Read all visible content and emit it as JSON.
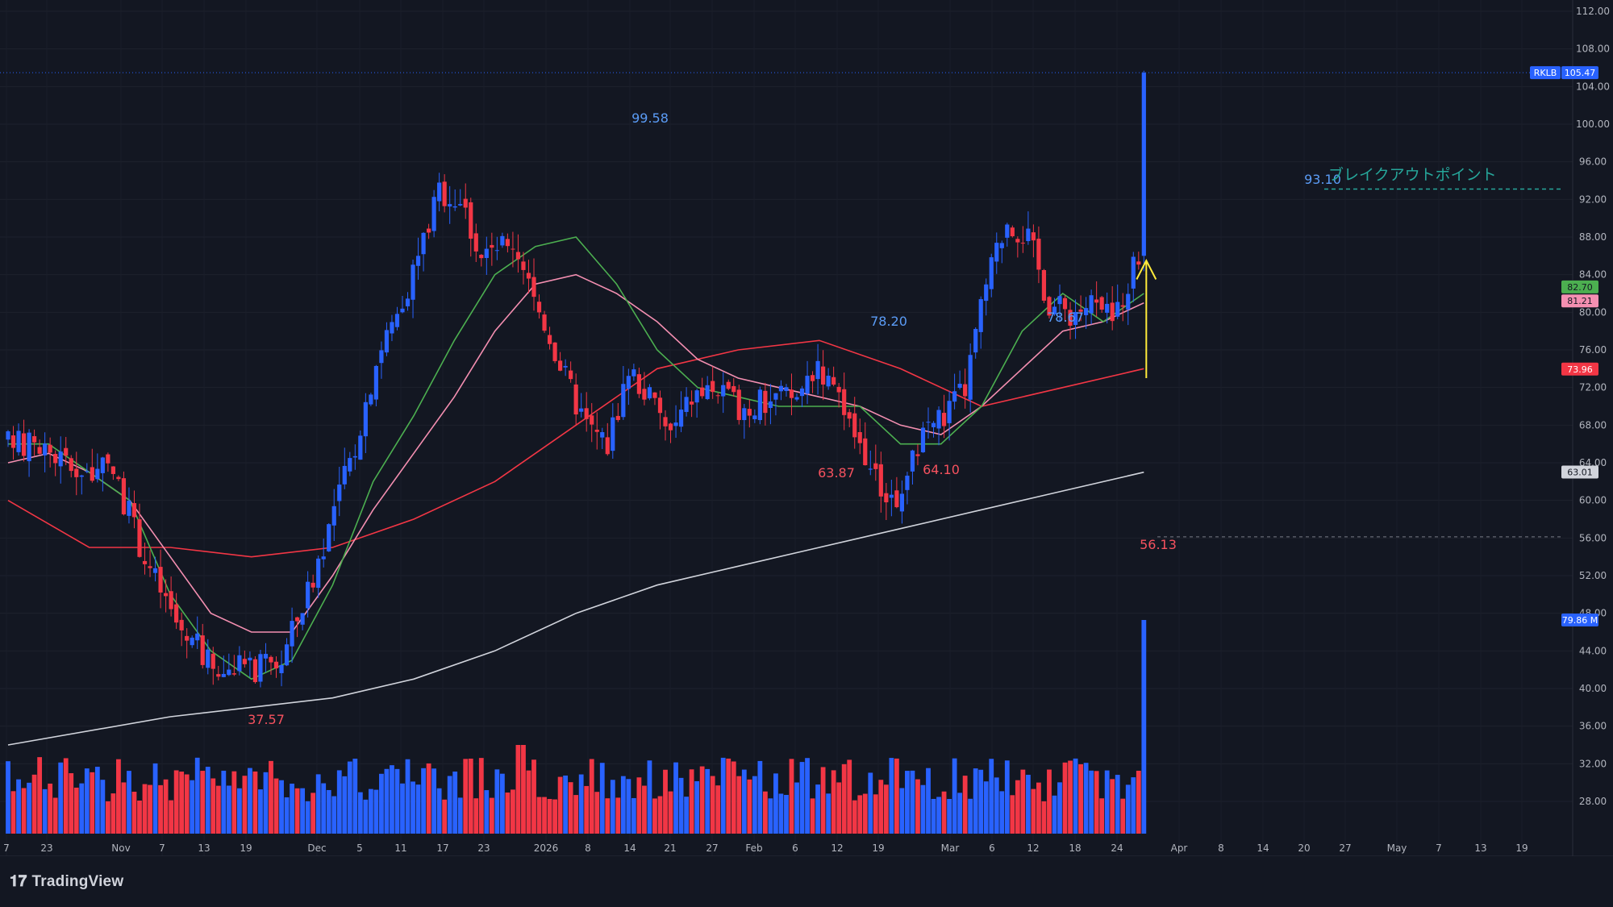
{
  "chart_data": {
    "type": "candlestick",
    "ticker": "RKLB",
    "last_price_label": "105.47",
    "y_ticks": [
      "112.00",
      "108.00",
      "104.00",
      "100.00",
      "96.00",
      "92.00",
      "88.00",
      "84.00",
      "80.00",
      "76.00",
      "72.00",
      "68.00",
      "64.00",
      "60.00",
      "56.00",
      "52.00",
      "48.00",
      "44.00",
      "40.00",
      "36.00",
      "32.00",
      "28.00"
    ],
    "x_ticks": [
      "7",
      "23",
      "Nov",
      "7",
      "13",
      "19",
      "Dec",
      "5",
      "11",
      "17",
      "23",
      "2026",
      "8",
      "14",
      "21",
      "27",
      "Feb",
      "6",
      "12",
      "19",
      "Mar",
      "6",
      "12",
      "18",
      "24",
      "Apr",
      "8",
      "14",
      "20",
      "Apr 27",
      "May",
      "7",
      "13",
      "19"
    ],
    "price_tags": [
      {
        "label": "RKLB",
        "value": "105.47",
        "color": "#2962ff"
      },
      {
        "label": "",
        "value": "82.70",
        "color": "#4caf50"
      },
      {
        "label": "",
        "value": "81.21",
        "color": "#f48fb1"
      },
      {
        "label": "",
        "value": "73.96",
        "color": "#f23645"
      },
      {
        "label": "",
        "value": "63.01",
        "color": "#d1d4dc"
      },
      {
        "label": "",
        "value": "79.86 M",
        "color": "#2962ff"
      }
    ],
    "annotations": [
      {
        "text": "99.58",
        "type": "high"
      },
      {
        "text": "78.20",
        "type": "high"
      },
      {
        "text": "78.67",
        "type": "high"
      },
      {
        "text": "93.10",
        "type": "high"
      },
      {
        "text": "37.57",
        "type": "low"
      },
      {
        "text": "63.87",
        "type": "low"
      },
      {
        "text": "64.10",
        "type": "low"
      },
      {
        "text": "56.13",
        "type": "low"
      }
    ],
    "breakout_label": "ブレイクアウトポイント",
    "breakout_level": 93.1,
    "support_level": 56.13,
    "current_price": 105.47,
    "ylim": [
      26,
      114
    ],
    "colors": {
      "up": "#2962ff",
      "down": "#f23645",
      "ma_fast": "#4caf50",
      "ma_mid": "#f48fb1",
      "ma_slow": "#f23645",
      "ma_long": "#d1d4dc",
      "arrow": "#ffeb3b"
    },
    "moving_averages": {
      "fast": [
        [
          0,
          66
        ],
        [
          10,
          66
        ],
        [
          20,
          63
        ],
        [
          30,
          60
        ],
        [
          40,
          50
        ],
        [
          50,
          44
        ],
        [
          60,
          41
        ],
        [
          70,
          43
        ],
        [
          80,
          51
        ],
        [
          90,
          62
        ],
        [
          100,
          69
        ],
        [
          110,
          77
        ],
        [
          120,
          84
        ],
        [
          130,
          87
        ],
        [
          140,
          88
        ],
        [
          150,
          83
        ],
        [
          160,
          76
        ],
        [
          170,
          72
        ],
        [
          180,
          71
        ],
        [
          190,
          70
        ],
        [
          200,
          70
        ],
        [
          210,
          70
        ],
        [
          220,
          66
        ],
        [
          230,
          66
        ],
        [
          240,
          70
        ],
        [
          250,
          78
        ],
        [
          260,
          82
        ],
        [
          270,
          79
        ],
        [
          280,
          82
        ]
      ],
      "mid": [
        [
          0,
          64
        ],
        [
          10,
          65
        ],
        [
          20,
          63
        ],
        [
          30,
          60
        ],
        [
          40,
          54
        ],
        [
          50,
          48
        ],
        [
          60,
          46
        ],
        [
          70,
          46
        ],
        [
          80,
          52
        ],
        [
          90,
          59
        ],
        [
          100,
          65
        ],
        [
          110,
          71
        ],
        [
          120,
          78
        ],
        [
          130,
          83
        ],
        [
          140,
          84
        ],
        [
          150,
          82
        ],
        [
          160,
          79
        ],
        [
          170,
          75
        ],
        [
          180,
          73
        ],
        [
          190,
          72
        ],
        [
          200,
          71
        ],
        [
          210,
          70
        ],
        [
          220,
          68
        ],
        [
          230,
          67
        ],
        [
          240,
          70
        ],
        [
          250,
          74
        ],
        [
          260,
          78
        ],
        [
          270,
          79
        ],
        [
          280,
          81
        ]
      ],
      "slow": [
        [
          0,
          60
        ],
        [
          20,
          55
        ],
        [
          40,
          55
        ],
        [
          60,
          54
        ],
        [
          80,
          55
        ],
        [
          100,
          58
        ],
        [
          120,
          62
        ],
        [
          140,
          68
        ],
        [
          160,
          74
        ],
        [
          180,
          76
        ],
        [
          200,
          77
        ],
        [
          220,
          74
        ],
        [
          240,
          70
        ],
        [
          260,
          72
        ],
        [
          280,
          74
        ]
      ],
      "long": [
        [
          0,
          34
        ],
        [
          40,
          37
        ],
        [
          80,
          39
        ],
        [
          100,
          41
        ],
        [
          120,
          44
        ],
        [
          140,
          48
        ],
        [
          160,
          51
        ],
        [
          180,
          53
        ],
        [
          200,
          55
        ],
        [
          220,
          57
        ],
        [
          240,
          59
        ],
        [
          260,
          61
        ],
        [
          280,
          63
        ]
      ]
    }
  }
}
